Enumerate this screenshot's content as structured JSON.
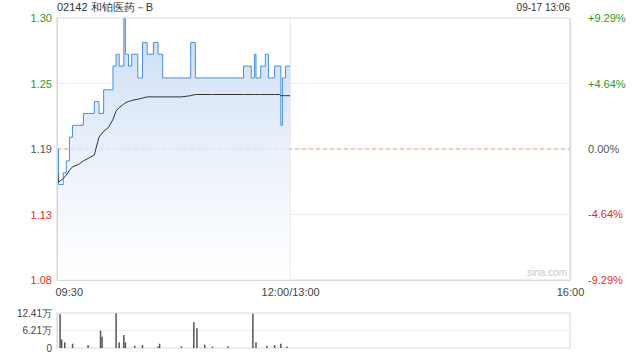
{
  "chart_data": [
    {
      "type": "line",
      "title": "02142 和铂医药－B",
      "subtitle": "09-17 13:06",
      "annotations": [
        "sina.com"
      ],
      "x": [
        0,
        1,
        2,
        4,
        6,
        8,
        10,
        14,
        17,
        20,
        24,
        27,
        30,
        33,
        36,
        38,
        40,
        43,
        44,
        46,
        48,
        52,
        55,
        58,
        62,
        65,
        68,
        80,
        86,
        89,
        100,
        110,
        120,
        125,
        127,
        128,
        131,
        134,
        136,
        140,
        143,
        144,
        145,
        147,
        150
      ],
      "xlim": [
        0,
        330
      ],
      "xticks": [
        {
          "value": 0,
          "label": "09:30"
        },
        {
          "value": 150,
          "label": "12:00/13:00"
        },
        {
          "value": 330,
          "label": "16:00"
        }
      ],
      "ylim": [
        1.0794,
        1.3006
      ],
      "yticks": [
        {
          "value": 1.3006,
          "label": "1.30"
        },
        {
          "value": 1.2453,
          "label": "1.25"
        },
        {
          "value": 1.19,
          "label": "1.19"
        },
        {
          "value": 1.1347,
          "label": "1.13"
        },
        {
          "value": 1.0794,
          "label": "1.08"
        }
      ],
      "y2lim": [
        -9.29,
        9.29
      ],
      "y2ticks": [
        {
          "value": 9.29,
          "label": "+9.29%"
        },
        {
          "value": 4.64,
          "label": "+4.64%"
        },
        {
          "value": 0,
          "label": "0.00%"
        },
        {
          "value": -4.64,
          "label": "-4.64%"
        },
        {
          "value": -9.29,
          "label": "-9.29%"
        }
      ],
      "grid": true,
      "series": [
        {
          "type": "area",
          "color": "#4a8fe0",
          "values": [
            1.19,
            1.16,
            1.16,
            1.17,
            1.18,
            1.2,
            1.21,
            1.21,
            1.22,
            1.22,
            1.23,
            1.22,
            1.24,
            1.24,
            1.26,
            1.27,
            1.26,
            1.3,
            1.27,
            1.26,
            1.27,
            1.25,
            1.28,
            1.27,
            1.28,
            1.27,
            1.25,
            1.25,
            1.28,
            1.25,
            1.25,
            1.25,
            1.26,
            1.25,
            1.27,
            1.25,
            1.26,
            1.27,
            1.25,
            1.26,
            1.26,
            1.21,
            1.25,
            1.26,
            1.26
          ]
        },
        {
          "type": "line",
          "color": "#333333",
          "values": [
            1.175,
            1.162,
            1.163,
            1.165,
            1.168,
            1.172,
            1.175,
            1.177,
            1.18,
            1.182,
            1.185,
            1.2,
            1.205,
            1.208,
            1.215,
            1.222,
            1.225,
            1.228,
            1.229,
            1.23,
            1.231,
            1.232,
            1.233,
            1.234,
            1.234,
            1.234,
            1.234,
            1.234,
            1.235,
            1.236,
            1.236,
            1.236,
            1.236,
            1.236,
            1.236,
            1.236,
            1.236,
            1.236,
            1.236,
            1.236,
            1.236,
            1.235,
            1.235,
            1.235,
            1.235
          ]
        }
      ]
    },
    {
      "type": "bar",
      "x": [
        2,
        3,
        5,
        10,
        20,
        28,
        29,
        38,
        40,
        43,
        44,
        50,
        55,
        65,
        66,
        80,
        88,
        90,
        95,
        100,
        110,
        126,
        128,
        135,
        140,
        144,
        148
      ],
      "values": [
        120000,
        30000,
        20000,
        15000,
        10000,
        62000,
        40000,
        123000,
        20000,
        46000,
        20000,
        8000,
        10000,
        5000,
        15000,
        6000,
        92000,
        70000,
        12000,
        5000,
        6000,
        122000,
        20000,
        8000,
        10000,
        15000,
        5000
      ],
      "xlim": [
        0,
        330
      ],
      "ylim": [
        0,
        124100
      ],
      "yticks": [
        0,
        {
          "value": 62100,
          "label": "6.21万"
        },
        {
          "value": 124100,
          "label": "12.41万"
        }
      ],
      "color": "#555555",
      "grid": true,
      "tick_labels": "y"
    }
  ]
}
